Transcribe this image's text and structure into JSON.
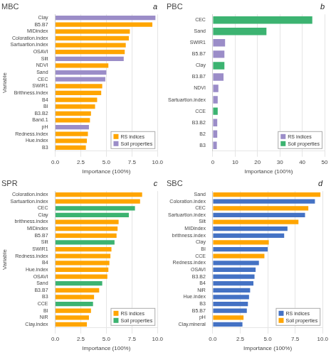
{
  "chart_data": [
    {
      "type": "bar",
      "orientation": "horizontal",
      "title": "MBC",
      "annotation": "a",
      "categories": [
        "Clay",
        "B5.B7",
        "MIDindex",
        "Coloration.index",
        "Sartuartion.index",
        "OSAVI",
        "Silt",
        "NDVI",
        "Sand",
        "CEC",
        "SWIR1",
        "Brithness.index",
        "B4",
        "BI",
        "B3.B2",
        "Band.1",
        "pH",
        "Redness.index",
        "Hue.index",
        "B3"
      ],
      "series": [
        {
          "name": "RS indices",
          "color": "#FFA500",
          "values": [
            null,
            9.5,
            7.3,
            7.2,
            6.9,
            6.8,
            null,
            5.2,
            null,
            null,
            4.6,
            4.5,
            4.1,
            3.9,
            3.5,
            3.4,
            null,
            3.2,
            3.1,
            3.0
          ]
        },
        {
          "name": "Soil properties",
          "color": "#9B8DC8",
          "values": [
            9.8,
            null,
            null,
            null,
            null,
            null,
            6.7,
            null,
            5.0,
            4.9,
            null,
            null,
            null,
            null,
            null,
            null,
            3.3,
            null,
            null,
            null
          ]
        }
      ],
      "xlim": [
        0,
        10.0
      ],
      "xticks": [
        {
          "value": 0,
          "label": "0.0"
        },
        2.5,
        {
          "value": 5,
          "label": "5.0"
        },
        7.5,
        {
          "value": 10,
          "label": "10.0"
        }
      ],
      "xlabel": "Importance (100%)",
      "ylabel": "Variable",
      "grid": true,
      "legend": "lower right"
    },
    {
      "type": "bar",
      "orientation": "horizontal",
      "title": "PBC",
      "annotation": "b",
      "categories": [
        "CEC",
        "Sand",
        "SWIR1",
        "B5.B7",
        "Clay",
        "B3.B7",
        "NDVI",
        "Sartuartion.index",
        "CCE",
        "B3.B2",
        "B2",
        "B3"
      ],
      "series": [
        {
          "name": "RS indices",
          "color": "#9B8DC8",
          "values": [
            null,
            null,
            5.5,
            5.2,
            null,
            4.8,
            2.5,
            2.2,
            null,
            2.0,
            2.0,
            1.8
          ]
        },
        {
          "name": "Soil properties",
          "color": "#3CB371",
          "values": [
            44.5,
            24.0,
            null,
            null,
            5.2,
            null,
            null,
            null,
            2.2,
            null,
            null,
            null
          ]
        }
      ],
      "xlim": [
        0,
        50
      ],
      "xticks": [
        0,
        10,
        20,
        30,
        40,
        50
      ],
      "xlabel": "Importance (100%)",
      "grid": true,
      "legend": "lower right"
    },
    {
      "type": "bar",
      "orientation": "horizontal",
      "title": "SPR",
      "annotation": "c",
      "categories": [
        "Coloration.index",
        "Sartuartion.index",
        "CEC",
        "Clay",
        "brithness.index",
        "MIDindex",
        "B5.B7",
        "Silt",
        "SWIR1",
        "Redness.index",
        "B4",
        "Hue.index",
        "OSAVI",
        "Sand",
        "B3.B7",
        "B3",
        "CCE",
        "BI",
        "NiR",
        "Clay.index"
      ],
      "series": [
        {
          "name": "RS indices",
          "color": "#FFA500",
          "values": [
            8.5,
            8.3,
            null,
            null,
            6.2,
            6.1,
            6.0,
            null,
            5.5,
            5.4,
            5.3,
            5.2,
            5.1,
            null,
            4.3,
            3.8,
            null,
            3.5,
            3.3,
            3.1
          ]
        },
        {
          "name": "Soil properties",
          "color": "#3CB371",
          "values": [
            null,
            null,
            7.8,
            7.2,
            null,
            null,
            null,
            5.8,
            null,
            null,
            null,
            null,
            null,
            4.6,
            null,
            null,
            3.7,
            null,
            null,
            null
          ]
        }
      ],
      "xlim": [
        0,
        10.0
      ],
      "xticks": [
        {
          "value": 0,
          "label": "0.0"
        },
        2.5,
        {
          "value": 5,
          "label": "5.0"
        },
        7.5,
        {
          "value": 10,
          "label": "10.0"
        }
      ],
      "xlabel": "Importance (100%)",
      "ylabel": "Variable",
      "grid": true,
      "legend": "lower right"
    },
    {
      "type": "bar",
      "orientation": "horizontal",
      "title": "SBC",
      "annotation": "d",
      "categories": [
        "Sand",
        "Coloration.index",
        "CEC",
        "Sartuartion.index",
        "Silt",
        "MIDindex",
        "brithness.index",
        "Clay",
        "BI",
        "CCE",
        "Redness.index",
        "OSAVI",
        "B3.B2",
        "B4",
        "NiR",
        "Hue.index",
        "B3",
        "B5.B7",
        "pH",
        "Clay.mineral"
      ],
      "series": [
        {
          "name": "RS indices",
          "color": "#4472C4",
          "values": [
            null,
            9.3,
            null,
            8.4,
            null,
            6.8,
            6.5,
            null,
            5.0,
            null,
            4.2,
            3.9,
            3.8,
            3.7,
            3.4,
            3.3,
            3.2,
            3.1,
            null,
            2.7
          ]
        },
        {
          "name": "Soil properties",
          "color": "#FFA500",
          "values": [
            9.8,
            null,
            8.7,
            null,
            7.8,
            null,
            null,
            5.1,
            null,
            4.7,
            null,
            null,
            null,
            null,
            null,
            null,
            null,
            null,
            2.8,
            null
          ]
        }
      ],
      "xlim": [
        0,
        10.0
      ],
      "xticks": [
        {
          "value": 0,
          "label": "0.0"
        },
        2.5,
        {
          "value": 5,
          "label": "5.0"
        },
        7.5,
        {
          "value": 10,
          "label": "10.0"
        }
      ],
      "xlabel": "Importance (100%)",
      "grid": true,
      "legend": "lower right"
    }
  ]
}
